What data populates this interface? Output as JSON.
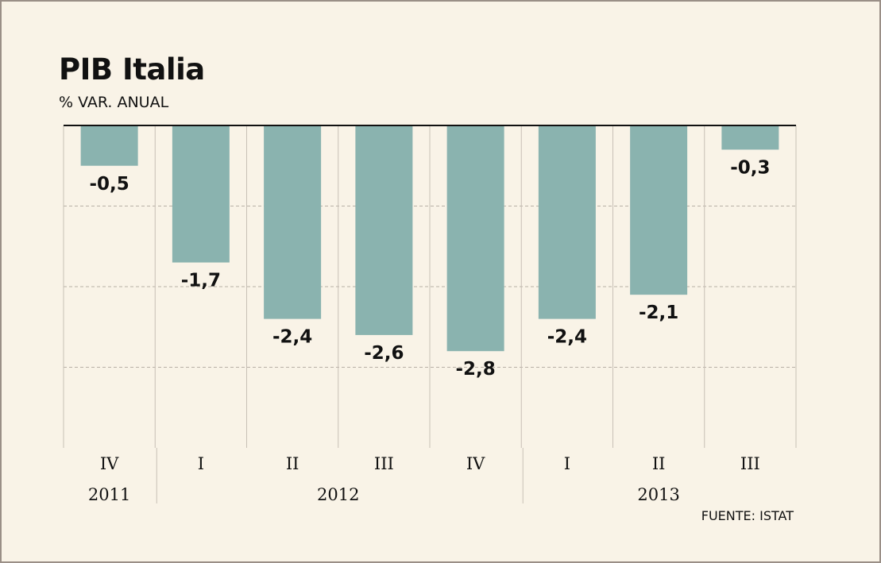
{
  "chart_data": {
    "type": "bar",
    "title": "PIB Italia",
    "subtitle": "% VAR. ANUAL",
    "categories": [
      "IV",
      "I",
      "II",
      "III",
      "IV",
      "I",
      "II",
      "III"
    ],
    "values": [
      -0.5,
      -1.7,
      -2.4,
      -2.6,
      -2.8,
      -2.4,
      -2.1,
      -0.3
    ],
    "value_labels": [
      "-0,5",
      "-1,7",
      "-2,4",
      "-2,6",
      "-2,8",
      "-2,4",
      "-2,1",
      "-0,3"
    ],
    "year_groups": [
      {
        "label": "2011",
        "count": 1
      },
      {
        "label": "2012",
        "count": 4
      },
      {
        "label": "2013",
        "count": 3
      }
    ],
    "ylim": [
      -4,
      0
    ],
    "grid": true,
    "bar_color": "#8ab3af",
    "source": "FUENTE: ISTAT"
  }
}
